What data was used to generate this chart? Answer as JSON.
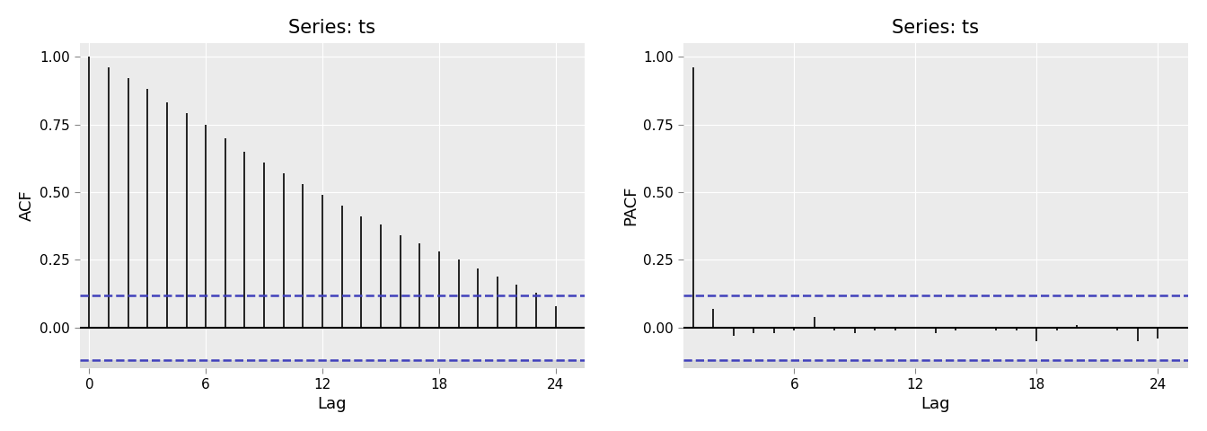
{
  "acf_title": "Series: ts",
  "pacf_title": "Series: ts",
  "acf_ylabel": "ACF",
  "pacf_ylabel": "PACF",
  "xlabel": "Lag",
  "acf_values": [
    1.0,
    0.96,
    0.92,
    0.88,
    0.83,
    0.79,
    0.75,
    0.7,
    0.65,
    0.61,
    0.57,
    0.53,
    0.49,
    0.45,
    0.41,
    0.38,
    0.34,
    0.31,
    0.28,
    0.25,
    0.22,
    0.19,
    0.16,
    0.13,
    0.08
  ],
  "pacf_values": [
    0.96,
    0.07,
    -0.03,
    -0.02,
    -0.02,
    -0.01,
    0.04,
    -0.01,
    -0.02,
    -0.01,
    -0.01,
    0.0,
    -0.02,
    -0.01,
    0.0,
    -0.01,
    -0.01,
    -0.05,
    -0.01,
    0.01,
    0.0,
    -0.01,
    -0.05,
    -0.04
  ],
  "conf_int": 0.12,
  "conf_int_neg": -0.12,
  "ylim": [
    -0.15,
    1.05
  ],
  "xlim_acf": [
    -0.5,
    25.5
  ],
  "xlim_pacf": [
    0.5,
    25.5
  ],
  "xticks_acf": [
    0,
    6,
    12,
    18,
    24
  ],
  "xticks_pacf": [
    6,
    12,
    18,
    24
  ],
  "yticks": [
    0.0,
    0.25,
    0.5,
    0.75,
    1.0
  ],
  "ytick_labels": [
    "0.00",
    "0.25",
    "0.50",
    "0.75",
    "1.00"
  ],
  "background_color": "#EBEBEB",
  "bar_color": "#000000",
  "conf_line_color": "#4040BB",
  "zero_line_color": "#000000",
  "shade_color": "#D8D8D8",
  "title_fontsize": 15,
  "label_fontsize": 13,
  "tick_fontsize": 11,
  "grid_color": "#FFFFFF",
  "figure_bg": "#FFFFFF"
}
